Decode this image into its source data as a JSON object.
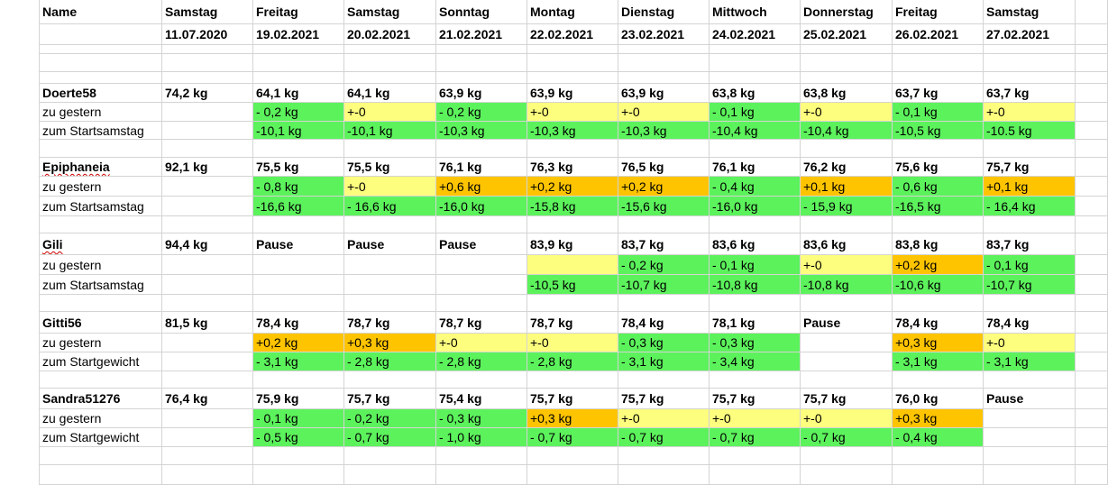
{
  "header": {
    "name_label": "Name",
    "columns": [
      {
        "day": "Samstag",
        "date": "11.07.2020"
      },
      {
        "day": "Freitag",
        "date": "19.02.2021"
      },
      {
        "day": "Samstag",
        "date": "20.02.2021"
      },
      {
        "day": "Sonntag",
        "date": "21.02.2021"
      },
      {
        "day": "Montag",
        "date": "22.02.2021"
      },
      {
        "day": "Dienstag",
        "date": "23.02.2021"
      },
      {
        "day": "Mittwoch",
        "date": "24.02.2021"
      },
      {
        "day": "Donnerstag",
        "date": "25.02.2021"
      },
      {
        "day": "Freitag",
        "date": "26.02.2021"
      },
      {
        "day": "Samstag",
        "date": "27.02.2021"
      }
    ]
  },
  "colors": {
    "green": "#5cf25c",
    "yellow": "#fdfd7e",
    "orange": "#ffc400",
    "grid": "#d4d4d4"
  },
  "people": [
    {
      "name": "Doerte58",
      "spellcheck_mark": false,
      "weights": [
        "74,2 kg",
        "64,1 kg",
        "64,1 kg",
        "63,9 kg",
        "63,9 kg",
        "63,9 kg",
        "63,8 kg",
        "63,8 kg",
        "63,7 kg",
        "63,7 kg"
      ],
      "delta_label": "zu gestern",
      "delta": [
        [
          "",
          ""
        ],
        [
          "- 0,2 kg",
          "g"
        ],
        [
          "+-0",
          "y"
        ],
        [
          "- 0,2 kg",
          "g"
        ],
        [
          "+-0",
          "y"
        ],
        [
          "+-0",
          "y"
        ],
        [
          "- 0,1 kg",
          "g"
        ],
        [
          "+-0",
          "y"
        ],
        [
          "- 0,1 kg",
          "g"
        ],
        [
          "+-0",
          "y"
        ]
      ],
      "total_label": "zum Startsamstag",
      "total": [
        [
          "",
          ""
        ],
        [
          "-10,1 kg",
          "g"
        ],
        [
          "-10,1 kg",
          "g"
        ],
        [
          "-10,3 kg",
          "g"
        ],
        [
          "-10,3 kg",
          "g"
        ],
        [
          "-10,3 kg",
          "g"
        ],
        [
          "-10,4 kg",
          "g"
        ],
        [
          "-10,4 kg",
          "g"
        ],
        [
          "-10,5 kg",
          "g"
        ],
        [
          "-10.5 kg",
          "g"
        ]
      ]
    },
    {
      "name": "Epiphaneia",
      "spellcheck_mark": true,
      "weights": [
        "92,1 kg",
        "75,5 kg",
        "75,5 kg",
        "76,1 kg",
        "76,3 kg",
        "76,5 kg",
        "76,1 kg",
        "76,2 kg",
        "75,6 kg",
        "75,7 kg"
      ],
      "delta_label": "zu gestern",
      "delta": [
        [
          "",
          ""
        ],
        [
          "- 0,8 kg",
          "g"
        ],
        [
          "+-0",
          "y"
        ],
        [
          "+0,6 kg",
          "o"
        ],
        [
          "+0,2 kg",
          "o"
        ],
        [
          "+0,2 kg",
          "o"
        ],
        [
          "- 0,4 kg",
          "g"
        ],
        [
          "+0,1 kg",
          "o"
        ],
        [
          "- 0,6 kg",
          "g"
        ],
        [
          "+0,1 kg",
          "o"
        ]
      ],
      "total_label": "zum Startsamstag",
      "total": [
        [
          "",
          ""
        ],
        [
          "-16,6 kg",
          "g"
        ],
        [
          "- 16,6 kg",
          "g"
        ],
        [
          "-16,0 kg",
          "g"
        ],
        [
          "-15,8 kg",
          "g"
        ],
        [
          "-15,6 kg",
          "g"
        ],
        [
          "-16,0 kg",
          "g"
        ],
        [
          "- 15,9 kg",
          "g"
        ],
        [
          "-16,5 kg",
          "g"
        ],
        [
          "- 16,4 kg",
          "g"
        ]
      ]
    },
    {
      "name": "Gili",
      "spellcheck_mark": true,
      "weights": [
        "94,4 kg",
        "Pause",
        "Pause",
        "Pause",
        "83,9 kg",
        "83,7 kg",
        "83,6 kg",
        "83,6 kg",
        "83,8 kg",
        "83,7 kg"
      ],
      "delta_label": "zu gestern",
      "delta": [
        [
          "",
          ""
        ],
        [
          "",
          ""
        ],
        [
          "",
          ""
        ],
        [
          "",
          ""
        ],
        [
          "",
          "y"
        ],
        [
          "- 0,2 kg",
          "g"
        ],
        [
          "- 0,1 kg",
          "g"
        ],
        [
          "+-0",
          "y"
        ],
        [
          "+0,2 kg",
          "o"
        ],
        [
          "- 0,1 kg",
          "g"
        ]
      ],
      "total_label": "zum Startsamstag",
      "total": [
        [
          "",
          ""
        ],
        [
          "",
          ""
        ],
        [
          "",
          ""
        ],
        [
          "",
          ""
        ],
        [
          "-10,5 kg",
          "g"
        ],
        [
          "-10,7 kg",
          "g"
        ],
        [
          "-10,8 kg",
          "g"
        ],
        [
          "-10,8 kg",
          "g"
        ],
        [
          "-10,6 kg",
          "g"
        ],
        [
          "-10,7 kg",
          "g"
        ]
      ]
    },
    {
      "name": "Gitti56",
      "spellcheck_mark": false,
      "weights": [
        "81,5 kg",
        "78,4 kg",
        "78,7 kg",
        "78,7 kg",
        "78,7 kg",
        "78,4 kg",
        "78,1 kg",
        "Pause",
        "78,4 kg",
        "78,4 kg"
      ],
      "delta_label": "zu gestern",
      "delta": [
        [
          "",
          ""
        ],
        [
          "+0,2 kg",
          "o"
        ],
        [
          "+0,3 kg",
          "o"
        ],
        [
          "+-0",
          "y"
        ],
        [
          "+-0",
          "y"
        ],
        [
          "- 0,3 kg",
          "g"
        ],
        [
          "- 0,3 kg",
          "g"
        ],
        [
          "",
          ""
        ],
        [
          "+0,3 kg",
          "o"
        ],
        [
          "+-0",
          "y"
        ]
      ],
      "total_label": "zum Startgewicht",
      "total": [
        [
          "",
          ""
        ],
        [
          "- 3,1 kg",
          "g"
        ],
        [
          "- 2,8 kg",
          "g"
        ],
        [
          "- 2,8 kg",
          "g"
        ],
        [
          "- 2,8 kg",
          "g"
        ],
        [
          "- 3,1 kg",
          "g"
        ],
        [
          "- 3,4 kg",
          "g"
        ],
        [
          "",
          ""
        ],
        [
          "- 3,1 kg",
          "g"
        ],
        [
          "- 3,1 kg",
          "g"
        ]
      ]
    },
    {
      "name": "Sandra51276",
      "spellcheck_mark": false,
      "weights": [
        "76,4 kg",
        "75,9 kg",
        "75,7 kg",
        "75,4 kg",
        "75,7 kg",
        "75,7 kg",
        "75,7 kg",
        "75,7 kg",
        "76,0 kg",
        "Pause"
      ],
      "delta_label": "zu gestern",
      "delta": [
        [
          "",
          ""
        ],
        [
          "- 0,1 kg",
          "g"
        ],
        [
          "- 0,2 kg",
          "g"
        ],
        [
          "- 0,3 kg",
          "g"
        ],
        [
          "+0,3 kg",
          "o"
        ],
        [
          "+-0",
          "y"
        ],
        [
          "+-0",
          "y"
        ],
        [
          "+-0",
          "y"
        ],
        [
          "+0,3 kg",
          "o"
        ],
        [
          "",
          ""
        ]
      ],
      "total_label": "zum Startgewicht",
      "total": [
        [
          "",
          ""
        ],
        [
          "- 0,5 kg",
          "g"
        ],
        [
          "- 0,7 kg",
          "g"
        ],
        [
          "- 1,0 kg",
          "g"
        ],
        [
          "- 0,7 kg",
          "g"
        ],
        [
          "- 0,7 kg",
          "g"
        ],
        [
          "- 0,7 kg",
          "g"
        ],
        [
          "- 0,7 kg",
          "g"
        ],
        [
          "- 0,4 kg",
          "g"
        ],
        [
          "",
          ""
        ]
      ]
    }
  ]
}
